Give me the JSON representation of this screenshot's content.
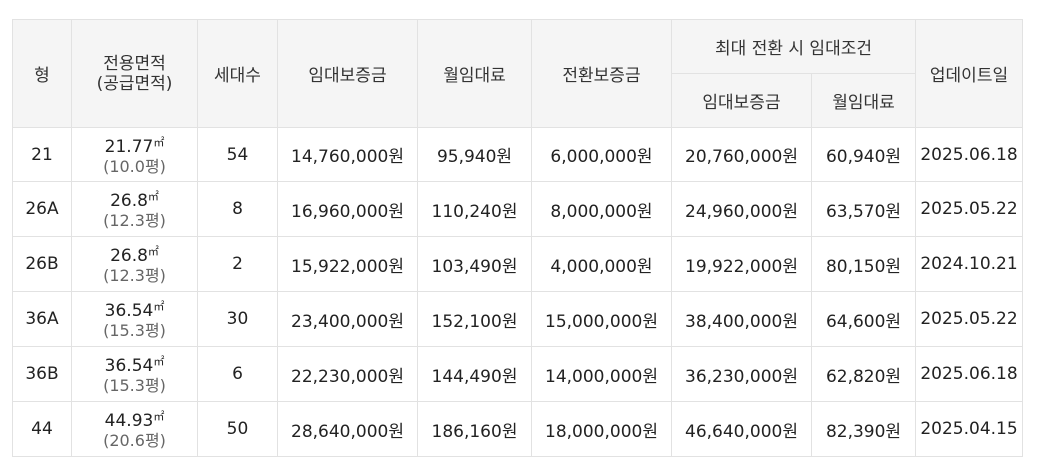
{
  "headers": {
    "type": "형",
    "area_line1": "전용면적",
    "area_line2": "(공급면적)",
    "households": "세대수",
    "deposit": "임대보증금",
    "monthly_rent": "월임대료",
    "conversion_deposit": "전환보증금",
    "max_conversion_group": "최대 전환 시 임대조건",
    "max_deposit": "임대보증금",
    "max_monthly_rent": "월임대료",
    "updated": "업데이트일"
  },
  "area_unit": "㎡",
  "rows": [
    {
      "type": "21",
      "area": "21.77",
      "supply": "(10.0평)",
      "households": "54",
      "deposit": "14,760,000원",
      "rent": "95,940원",
      "conversion": "6,000,000원",
      "max_deposit": "20,760,000원",
      "max_rent": "60,940원",
      "updated": "2025.06.18"
    },
    {
      "type": "26A",
      "area": "26.8",
      "supply": "(12.3평)",
      "households": "8",
      "deposit": "16,960,000원",
      "rent": "110,240원",
      "conversion": "8,000,000원",
      "max_deposit": "24,960,000원",
      "max_rent": "63,570원",
      "updated": "2025.05.22"
    },
    {
      "type": "26B",
      "area": "26.8",
      "supply": "(12.3평)",
      "households": "2",
      "deposit": "15,922,000원",
      "rent": "103,490원",
      "conversion": "4,000,000원",
      "max_deposit": "19,922,000원",
      "max_rent": "80,150원",
      "updated": "2024.10.21"
    },
    {
      "type": "36A",
      "area": "36.54",
      "supply": "(15.3평)",
      "households": "30",
      "deposit": "23,400,000원",
      "rent": "152,100원",
      "conversion": "15,000,000원",
      "max_deposit": "38,400,000원",
      "max_rent": "64,600원",
      "updated": "2025.05.22"
    },
    {
      "type": "36B",
      "area": "36.54",
      "supply": "(15.3평)",
      "households": "6",
      "deposit": "22,230,000원",
      "rent": "144,490원",
      "conversion": "14,000,000원",
      "max_deposit": "36,230,000원",
      "max_rent": "62,820원",
      "updated": "2025.06.18"
    },
    {
      "type": "44",
      "area": "44.93",
      "supply": "(20.6평)",
      "households": "50",
      "deposit": "28,640,000원",
      "rent": "186,160원",
      "conversion": "18,000,000원",
      "max_deposit": "46,640,000원",
      "max_rent": "82,390원",
      "updated": "2025.04.15"
    }
  ]
}
